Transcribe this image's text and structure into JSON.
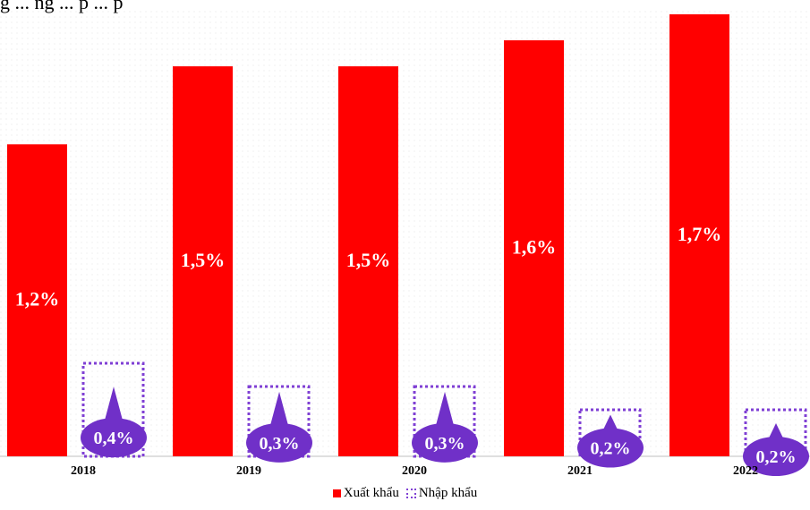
{
  "title_fragment": "g  ... ng  ... p   ... p",
  "chart_data": {
    "type": "bar",
    "categories": [
      "2018",
      "2019",
      "2020",
      "2021",
      "2022"
    ],
    "series": [
      {
        "name": "Xuất khẩu",
        "values": [
          1.2,
          1.5,
          1.5,
          1.6,
          1.7
        ],
        "labels": [
          "1,2%",
          "1,5%",
          "1,5%",
          "1,6%",
          "1,7%"
        ]
      },
      {
        "name": "Nhập khẩu",
        "values": [
          0.4,
          0.3,
          0.3,
          0.2,
          0.2
        ],
        "labels": [
          "0,4%",
          "0,3%",
          "0,3%",
          "0,2%",
          "0,2%"
        ]
      }
    ],
    "ylim": [
      0,
      1.7
    ],
    "grid": false,
    "legend_position": "bottom",
    "colors": {
      "export": "#ff0000",
      "import_border": "#7f3fd4",
      "callout": "#7030c8"
    }
  },
  "legend": {
    "export_label": "Xuất khẩu",
    "import_label": "Nhập khẩu"
  }
}
